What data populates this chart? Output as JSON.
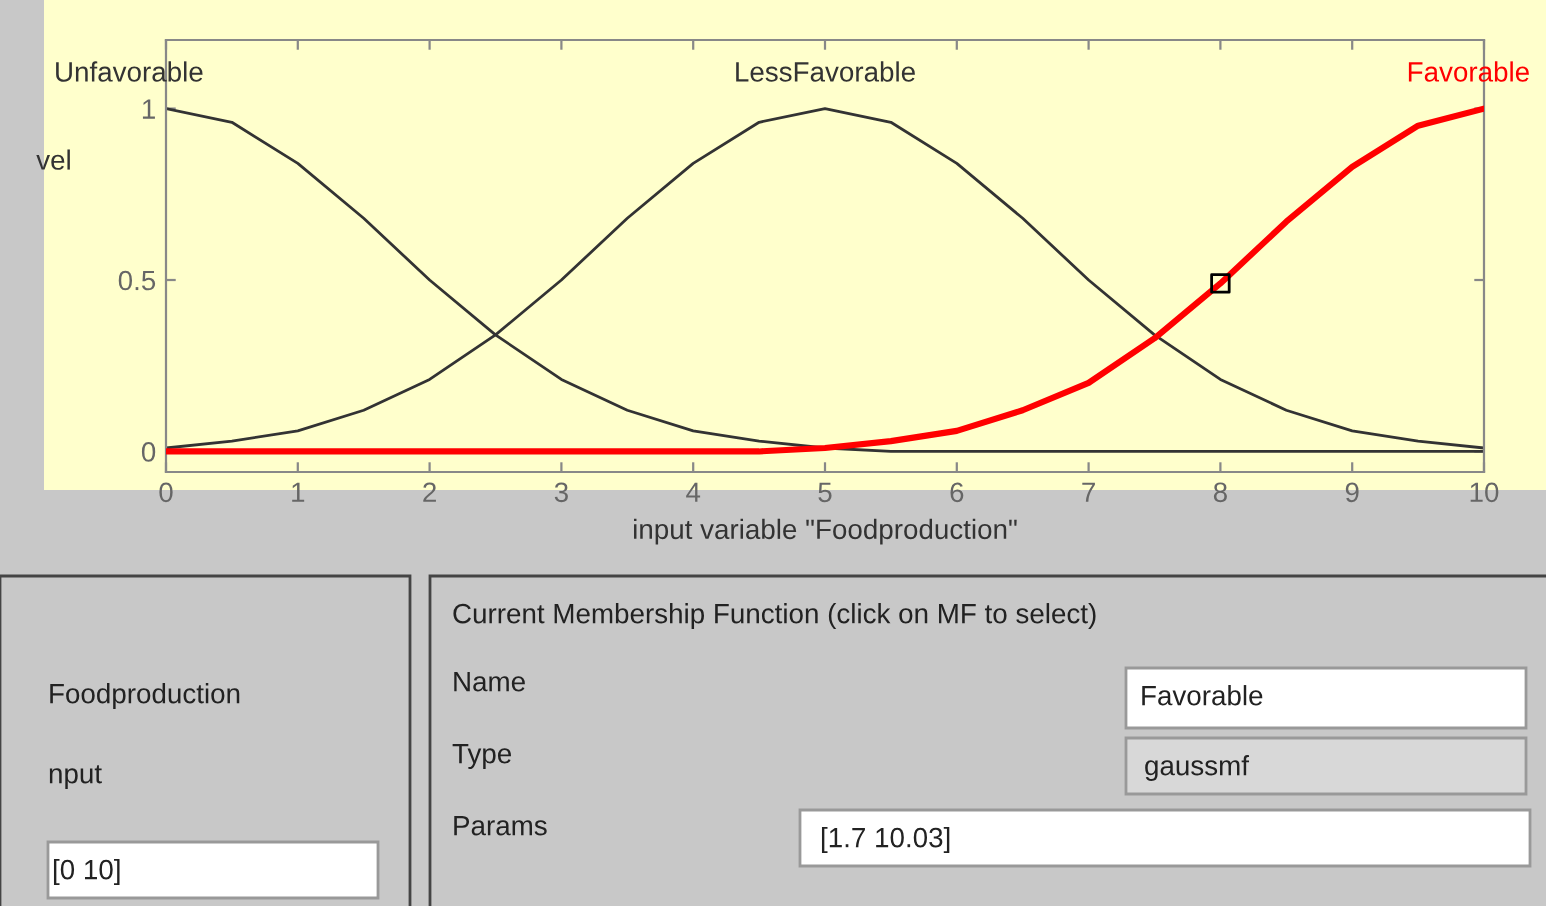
{
  "chart_data": {
    "type": "line",
    "xlabel": "input variable \"Foodproduction\"",
    "ylabel": "vel",
    "x": [
      0,
      0.5,
      1,
      1.5,
      2,
      2.5,
      3,
      3.5,
      4,
      4.5,
      5,
      5.5,
      6,
      6.5,
      7,
      7.5,
      8,
      8.5,
      9,
      9.5,
      10
    ],
    "series": [
      {
        "name": "Unfavorable",
        "color": "#333333",
        "values": [
          1,
          0.96,
          0.84,
          0.68,
          0.5,
          0.34,
          0.21,
          0.12,
          0.06,
          0.03,
          0.01,
          0,
          0,
          0,
          0,
          0,
          0,
          0,
          0,
          0,
          0
        ]
      },
      {
        "name": "LessFavorable",
        "color": "#333333",
        "values": [
          0.01,
          0.03,
          0.06,
          0.12,
          0.21,
          0.34,
          0.5,
          0.68,
          0.84,
          0.96,
          1,
          0.96,
          0.84,
          0.68,
          0.5,
          0.34,
          0.21,
          0.12,
          0.06,
          0.03,
          0.01
        ]
      },
      {
        "name": "Favorable",
        "color": "#ff0000",
        "values": [
          0,
          0,
          0,
          0,
          0,
          0,
          0,
          0,
          0,
          0,
          0.01,
          0.03,
          0.06,
          0.12,
          0.2,
          0.33,
          0.49,
          0.67,
          0.83,
          0.95,
          1
        ]
      },
      {
        "type": "scatter",
        "color": "#000000",
        "marker": "square",
        "x": [
          8
        ],
        "values": [
          0.49
        ]
      }
    ],
    "xlim": [
      0,
      10
    ],
    "ylim": [
      -0.06,
      1.2
    ],
    "xticks": [
      0,
      1,
      2,
      3,
      4,
      5,
      6,
      7,
      8,
      9,
      10
    ],
    "yticks": [
      0,
      0.5,
      1
    ],
    "grid": false,
    "legend": false,
    "annotations": [
      "Current Membership Function (click on MF to select)",
      "Name",
      "Favorable",
      "Type",
      "gaussmf",
      "Params",
      "[1.7 10.03]",
      "Foodproduction",
      "nput",
      "[0 10]"
    ]
  }
}
